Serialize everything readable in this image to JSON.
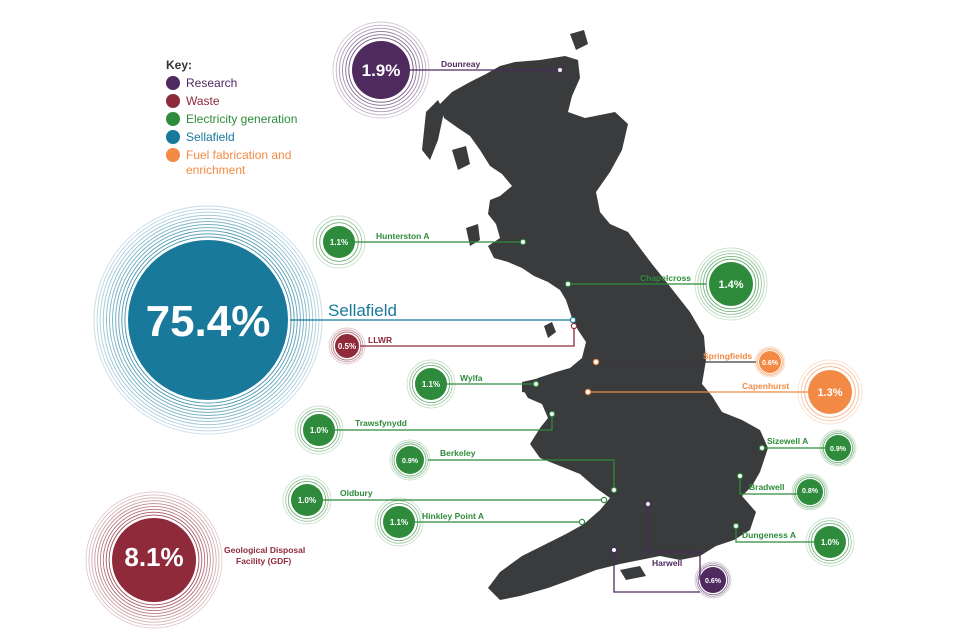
{
  "legend": {
    "title": "Key:",
    "items": [
      {
        "label": "Research",
        "color": "#4e2a5f"
      },
      {
        "label": "Waste",
        "color": "#8f2a3b"
      },
      {
        "label": "Electricity generation",
        "color": "#2e8b3b"
      },
      {
        "label": "Sellafield",
        "color": "#18799b"
      },
      {
        "label": "Fuel fabrication and enrichment",
        "color": "#f28a45"
      }
    ]
  },
  "colors": {
    "research": "#4e2a5f",
    "waste": "#8f2a3b",
    "electricity": "#2e8b3b",
    "sellafield": "#18799b",
    "fuel": "#f28a45",
    "map": "#3a3b3d"
  },
  "sites": {
    "dounreay": {
      "label": "Dounreay",
      "value": "1.9%"
    },
    "hunterston": {
      "label": "Hunterston A",
      "value": "1.1%"
    },
    "chapelcross": {
      "label": "Chapelcross",
      "value": "1.4%"
    },
    "sellafield": {
      "label": "Sellafield",
      "value": "75.4%"
    },
    "llwr": {
      "label": "LLWR",
      "value": "0.5%"
    },
    "springfields": {
      "label": "Springfields",
      "value": "0.6%"
    },
    "capenhurst": {
      "label": "Capenhurst",
      "value": "1.3%"
    },
    "wylfa": {
      "label": "Wylfa",
      "value": "1.1%"
    },
    "trawsfynydd": {
      "label": "Trawsfynydd",
      "value": "1.0%"
    },
    "berkeley": {
      "label": "Berkeley",
      "value": "0.9%"
    },
    "oldbury": {
      "label": "Oldbury",
      "value": "1.0%"
    },
    "hinkley": {
      "label": "Hinkley Point A",
      "value": "1.1%"
    },
    "sizewell": {
      "label": "Sizewell A",
      "value": "0.9%"
    },
    "bradwell": {
      "label": "Bradwell",
      "value": "0.8%"
    },
    "dungeness": {
      "label": "Dungeness A",
      "value": "1.0%"
    },
    "harwell": {
      "label": "Harwell",
      "value": "0.6%"
    },
    "gdf": {
      "label_line1": "Geological Disposal",
      "label_line2": "Facility (GDF)",
      "value": "8.1%"
    }
  }
}
